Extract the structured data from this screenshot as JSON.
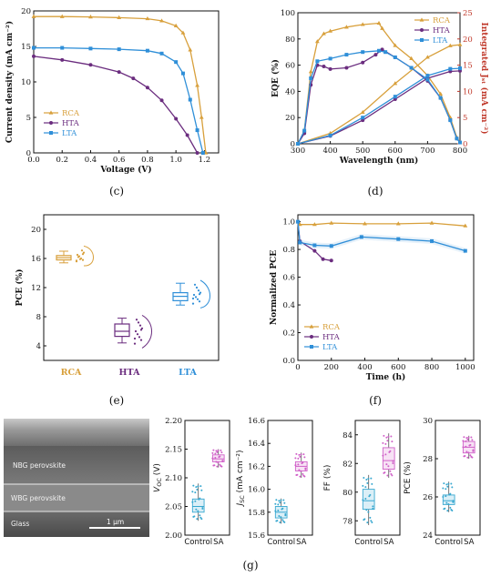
{
  "panels": {
    "c": "(c)",
    "d": "(d)",
    "e": "(e)",
    "f": "(f)",
    "g": "(g)"
  },
  "colors": {
    "RCA": "#d8a03c",
    "HTA": "#6b2d7f",
    "LTA": "#2f8fd8",
    "SAbox": "#d060c8",
    "Controlbox": "#38a8d0"
  },
  "chart_data": [
    {
      "id": "c",
      "type": "line",
      "xlabel": "Voltage (V)",
      "ylabel": "Current density (mA cm⁻²)",
      "xlim": [
        0,
        1.3
      ],
      "ylim": [
        0,
        20
      ],
      "xticks": [
        "0.0",
        "0.2",
        "0.4",
        "0.6",
        "0.8",
        "1.0",
        "1.2"
      ],
      "yticks": [
        "0",
        "5",
        "10",
        "15",
        "20"
      ],
      "legend_position": "bottom-left",
      "series": [
        {
          "name": "RCA",
          "marker": "triangle",
          "points": [
            [
              0,
              19.2
            ],
            [
              0.2,
              19.2
            ],
            [
              0.4,
              19.15
            ],
            [
              0.6,
              19.05
            ],
            [
              0.8,
              18.9
            ],
            [
              0.9,
              18.6
            ],
            [
              1.0,
              17.9
            ],
            [
              1.05,
              16.9
            ],
            [
              1.1,
              14.5
            ],
            [
              1.15,
              9.5
            ],
            [
              1.18,
              5
            ],
            [
              1.21,
              0
            ]
          ]
        },
        {
          "name": "HTA",
          "marker": "circle",
          "points": [
            [
              0,
              13.6
            ],
            [
              0.2,
              13.1
            ],
            [
              0.4,
              12.4
            ],
            [
              0.6,
              11.4
            ],
            [
              0.7,
              10.5
            ],
            [
              0.8,
              9.2
            ],
            [
              0.9,
              7.4
            ],
            [
              1.0,
              4.8
            ],
            [
              1.08,
              2.5
            ],
            [
              1.15,
              0
            ]
          ]
        },
        {
          "name": "LTA",
          "marker": "square",
          "points": [
            [
              0,
              14.8
            ],
            [
              0.2,
              14.8
            ],
            [
              0.4,
              14.7
            ],
            [
              0.6,
              14.6
            ],
            [
              0.8,
              14.4
            ],
            [
              0.9,
              14.0
            ],
            [
              1.0,
              12.8
            ],
            [
              1.05,
              11.2
            ],
            [
              1.1,
              7.5
            ],
            [
              1.15,
              3.2
            ],
            [
              1.19,
              0
            ]
          ]
        }
      ]
    },
    {
      "id": "d",
      "type": "line",
      "xlabel": "Wavelength (nm)",
      "ylabel": "EQE (%)",
      "y2label": "Integrated Jₛₜ (mA cm⁻²)",
      "xlim": [
        300,
        800
      ],
      "ylim": [
        0,
        100
      ],
      "y2lim": [
        0,
        25
      ],
      "xticks": [
        "300",
        "400",
        "500",
        "600",
        "700",
        "800"
      ],
      "yticks": [
        "0",
        "20",
        "40",
        "60",
        "80",
        "100"
      ],
      "y2ticks": [
        "0",
        "5",
        "10",
        "15",
        "20",
        "25"
      ],
      "legend_position": "top-right",
      "series": [
        {
          "name": "RCA",
          "marker": "triangle",
          "eqe": [
            [
              300,
              0
            ],
            [
              320,
              10
            ],
            [
              340,
              55
            ],
            [
              360,
              78
            ],
            [
              380,
              84
            ],
            [
              400,
              86
            ],
            [
              450,
              89
            ],
            [
              500,
              91
            ],
            [
              550,
              92
            ],
            [
              560,
              88
            ],
            [
              600,
              75
            ],
            [
              650,
              65
            ],
            [
              700,
              52
            ],
            [
              740,
              38
            ],
            [
              770,
              20
            ],
            [
              790,
              5
            ],
            [
              800,
              1
            ]
          ],
          "jsc": [
            [
              300,
              0
            ],
            [
              400,
              2
            ],
            [
              500,
              6
            ],
            [
              600,
              11.5
            ],
            [
              700,
              16.5
            ],
            [
              770,
              18.7
            ],
            [
              800,
              18.9
            ]
          ]
        },
        {
          "name": "HTA",
          "marker": "circle",
          "eqe": [
            [
              300,
              0
            ],
            [
              320,
              8
            ],
            [
              340,
              45
            ],
            [
              360,
              60
            ],
            [
              380,
              59
            ],
            [
              400,
              57
            ],
            [
              450,
              58
            ],
            [
              500,
              62
            ],
            [
              540,
              68
            ],
            [
              560,
              72
            ],
            [
              600,
              66
            ],
            [
              650,
              58
            ],
            [
              700,
              48
            ],
            [
              740,
              35
            ],
            [
              770,
              18
            ],
            [
              790,
              4
            ],
            [
              800,
              1
            ]
          ],
          "jsc": [
            [
              300,
              0
            ],
            [
              400,
              1.5
            ],
            [
              500,
              4.5
            ],
            [
              600,
              8.5
            ],
            [
              700,
              12.5
            ],
            [
              770,
              13.8
            ],
            [
              800,
              13.9
            ]
          ]
        },
        {
          "name": "LTA",
          "marker": "square",
          "eqe": [
            [
              300,
              0
            ],
            [
              320,
              10
            ],
            [
              340,
              50
            ],
            [
              360,
              63
            ],
            [
              400,
              65
            ],
            [
              450,
              68
            ],
            [
              500,
              70
            ],
            [
              550,
              71
            ],
            [
              570,
              70
            ],
            [
              600,
              66
            ],
            [
              650,
              58
            ],
            [
              700,
              49
            ],
            [
              740,
              35
            ],
            [
              770,
              18
            ],
            [
              790,
              4
            ],
            [
              800,
              1
            ]
          ],
          "jsc": [
            [
              300,
              0
            ],
            [
              400,
              1.6
            ],
            [
              500,
              5
            ],
            [
              600,
              9
            ],
            [
              700,
              13
            ],
            [
              770,
              14.3
            ],
            [
              800,
              14.4
            ]
          ]
        }
      ]
    },
    {
      "id": "e",
      "type": "box",
      "ylabel": "PCE (%)",
      "ylim": [
        2,
        22
      ],
      "yticks": [
        "4",
        "8",
        "12",
        "16",
        "20"
      ],
      "categories": [
        "RCA",
        "HTA",
        "LTA"
      ],
      "boxes": [
        {
          "name": "RCA",
          "min": 15.4,
          "q1": 15.8,
          "median": 16.1,
          "q3": 16.4,
          "max": 17.0,
          "points": [
            15.6,
            15.8,
            16.0,
            16.3,
            16.5,
            16.8,
            17.1,
            15.9,
            16.2,
            15.7,
            16.6
          ]
        },
        {
          "name": "HTA",
          "min": 4.4,
          "q1": 5.3,
          "median": 6.0,
          "q3": 7.0,
          "max": 7.8,
          "points": [
            4.3,
            4.8,
            5.2,
            5.6,
            6.0,
            6.4,
            6.8,
            7.2,
            7.6,
            5.0,
            6.2
          ]
        },
        {
          "name": "LTA",
          "min": 9.6,
          "q1": 10.2,
          "median": 10.8,
          "q3": 11.3,
          "max": 12.6,
          "points": [
            9.8,
            10.1,
            10.4,
            10.7,
            11.0,
            11.3,
            11.6,
            12.0,
            12.4,
            10.5,
            11.1
          ]
        }
      ]
    },
    {
      "id": "f",
      "type": "line",
      "xlabel": "Time (h)",
      "ylabel": "Normalized PCE",
      "xlim": [
        0,
        1050
      ],
      "ylim": [
        0,
        1.05
      ],
      "xticks": [
        "0",
        "200",
        "400",
        "600",
        "800",
        "1000"
      ],
      "yticks": [
        "0.0",
        "0.2",
        "0.4",
        "0.6",
        "0.8",
        "1.0"
      ],
      "legend_position": "bottom-left",
      "series": [
        {
          "name": "RCA",
          "marker": "triangle",
          "points": [
            [
              0,
              1.0
            ],
            [
              12,
              0.98
            ],
            [
              100,
              0.98
            ],
            [
              200,
              0.99
            ],
            [
              400,
              0.985
            ],
            [
              600,
              0.985
            ],
            [
              800,
              0.99
            ],
            [
              1000,
              0.97
            ]
          ]
        },
        {
          "name": "HTA",
          "marker": "circle",
          "points": [
            [
              0,
              1.0
            ],
            [
              12,
              0.86
            ],
            [
              100,
              0.79
            ],
            [
              150,
              0.73
            ],
            [
              200,
              0.72
            ]
          ]
        },
        {
          "name": "LTA",
          "marker": "square",
          "points": [
            [
              0,
              1.0
            ],
            [
              12,
              0.85
            ],
            [
              100,
              0.83
            ],
            [
              200,
              0.825
            ],
            [
              380,
              0.89
            ],
            [
              600,
              0.875
            ],
            [
              800,
              0.86
            ],
            [
              1000,
              0.79
            ]
          ]
        }
      ]
    },
    {
      "id": "g1",
      "type": "box",
      "ylabel": "V_OC (V)",
      "ylabel_main": "V",
      "ylabel_sub": "OC",
      "ylabel_unit": " (V)",
      "ylim": [
        2.0,
        2.2
      ],
      "yticks": [
        "2.00",
        "2.05",
        "2.10",
        "2.15",
        "2.20"
      ],
      "categories": [
        "Control",
        "SA"
      ],
      "boxes": [
        {
          "name": "Control",
          "min": 2.025,
          "q1": 2.04,
          "median": 2.05,
          "q3": 2.063,
          "max": 2.09
        },
        {
          "name": "SA",
          "min": 2.118,
          "q1": 2.128,
          "median": 2.133,
          "q3": 2.14,
          "max": 2.15
        }
      ]
    },
    {
      "id": "g2",
      "type": "box",
      "ylabel": "J_SC (mA cm⁻²)",
      "ylabel_main": "J",
      "ylabel_sub": "SC",
      "ylabel_unit": " (mA cm⁻²)",
      "ylim": [
        15.6,
        16.6
      ],
      "yticks": [
        "15.6",
        "15.8",
        "16.0",
        "16.2",
        "16.4",
        "16.6"
      ],
      "categories": [
        "Control",
        "SA"
      ],
      "boxes": [
        {
          "name": "Control",
          "min": 15.7,
          "q1": 15.75,
          "median": 15.8,
          "q3": 15.85,
          "max": 15.92
        },
        {
          "name": "SA",
          "min": 16.1,
          "q1": 16.16,
          "median": 16.2,
          "q3": 16.24,
          "max": 16.32
        }
      ]
    },
    {
      "id": "g3",
      "type": "box",
      "ylabel": "FF (%)",
      "ylabel_main": "FF",
      "ylabel_sub": "",
      "ylabel_unit": " (%)",
      "ylim": [
        77,
        85
      ],
      "yticks": [
        "78",
        "80",
        "82",
        "84"
      ],
      "categories": [
        "Control",
        "SA"
      ],
      "boxes": [
        {
          "name": "Control",
          "min": 77.7,
          "q1": 78.8,
          "median": 79.4,
          "q3": 80.2,
          "max": 81.2
        },
        {
          "name": "SA",
          "min": 81.0,
          "q1": 81.6,
          "median": 82.2,
          "q3": 83.1,
          "max": 84.1
        }
      ]
    },
    {
      "id": "g4",
      "type": "box",
      "ylabel": "PCE (%)",
      "ylabel_main": "PCE",
      "ylabel_sub": "",
      "ylabel_unit": " (%)",
      "ylim": [
        24,
        30
      ],
      "yticks": [
        "24",
        "26",
        "28",
        "30"
      ],
      "categories": [
        "Control",
        "SA"
      ],
      "boxes": [
        {
          "name": "Control",
          "min": 25.2,
          "q1": 25.6,
          "median": 25.8,
          "q3": 26.1,
          "max": 26.8
        },
        {
          "name": "SA",
          "min": 28.0,
          "q1": 28.3,
          "median": 28.6,
          "q3": 28.9,
          "max": 29.2
        }
      ]
    }
  ],
  "sem_image": {
    "labels": [
      "NBG perovskite",
      "WBG perovskite",
      "Glass"
    ],
    "scalebar": "1 μm"
  }
}
